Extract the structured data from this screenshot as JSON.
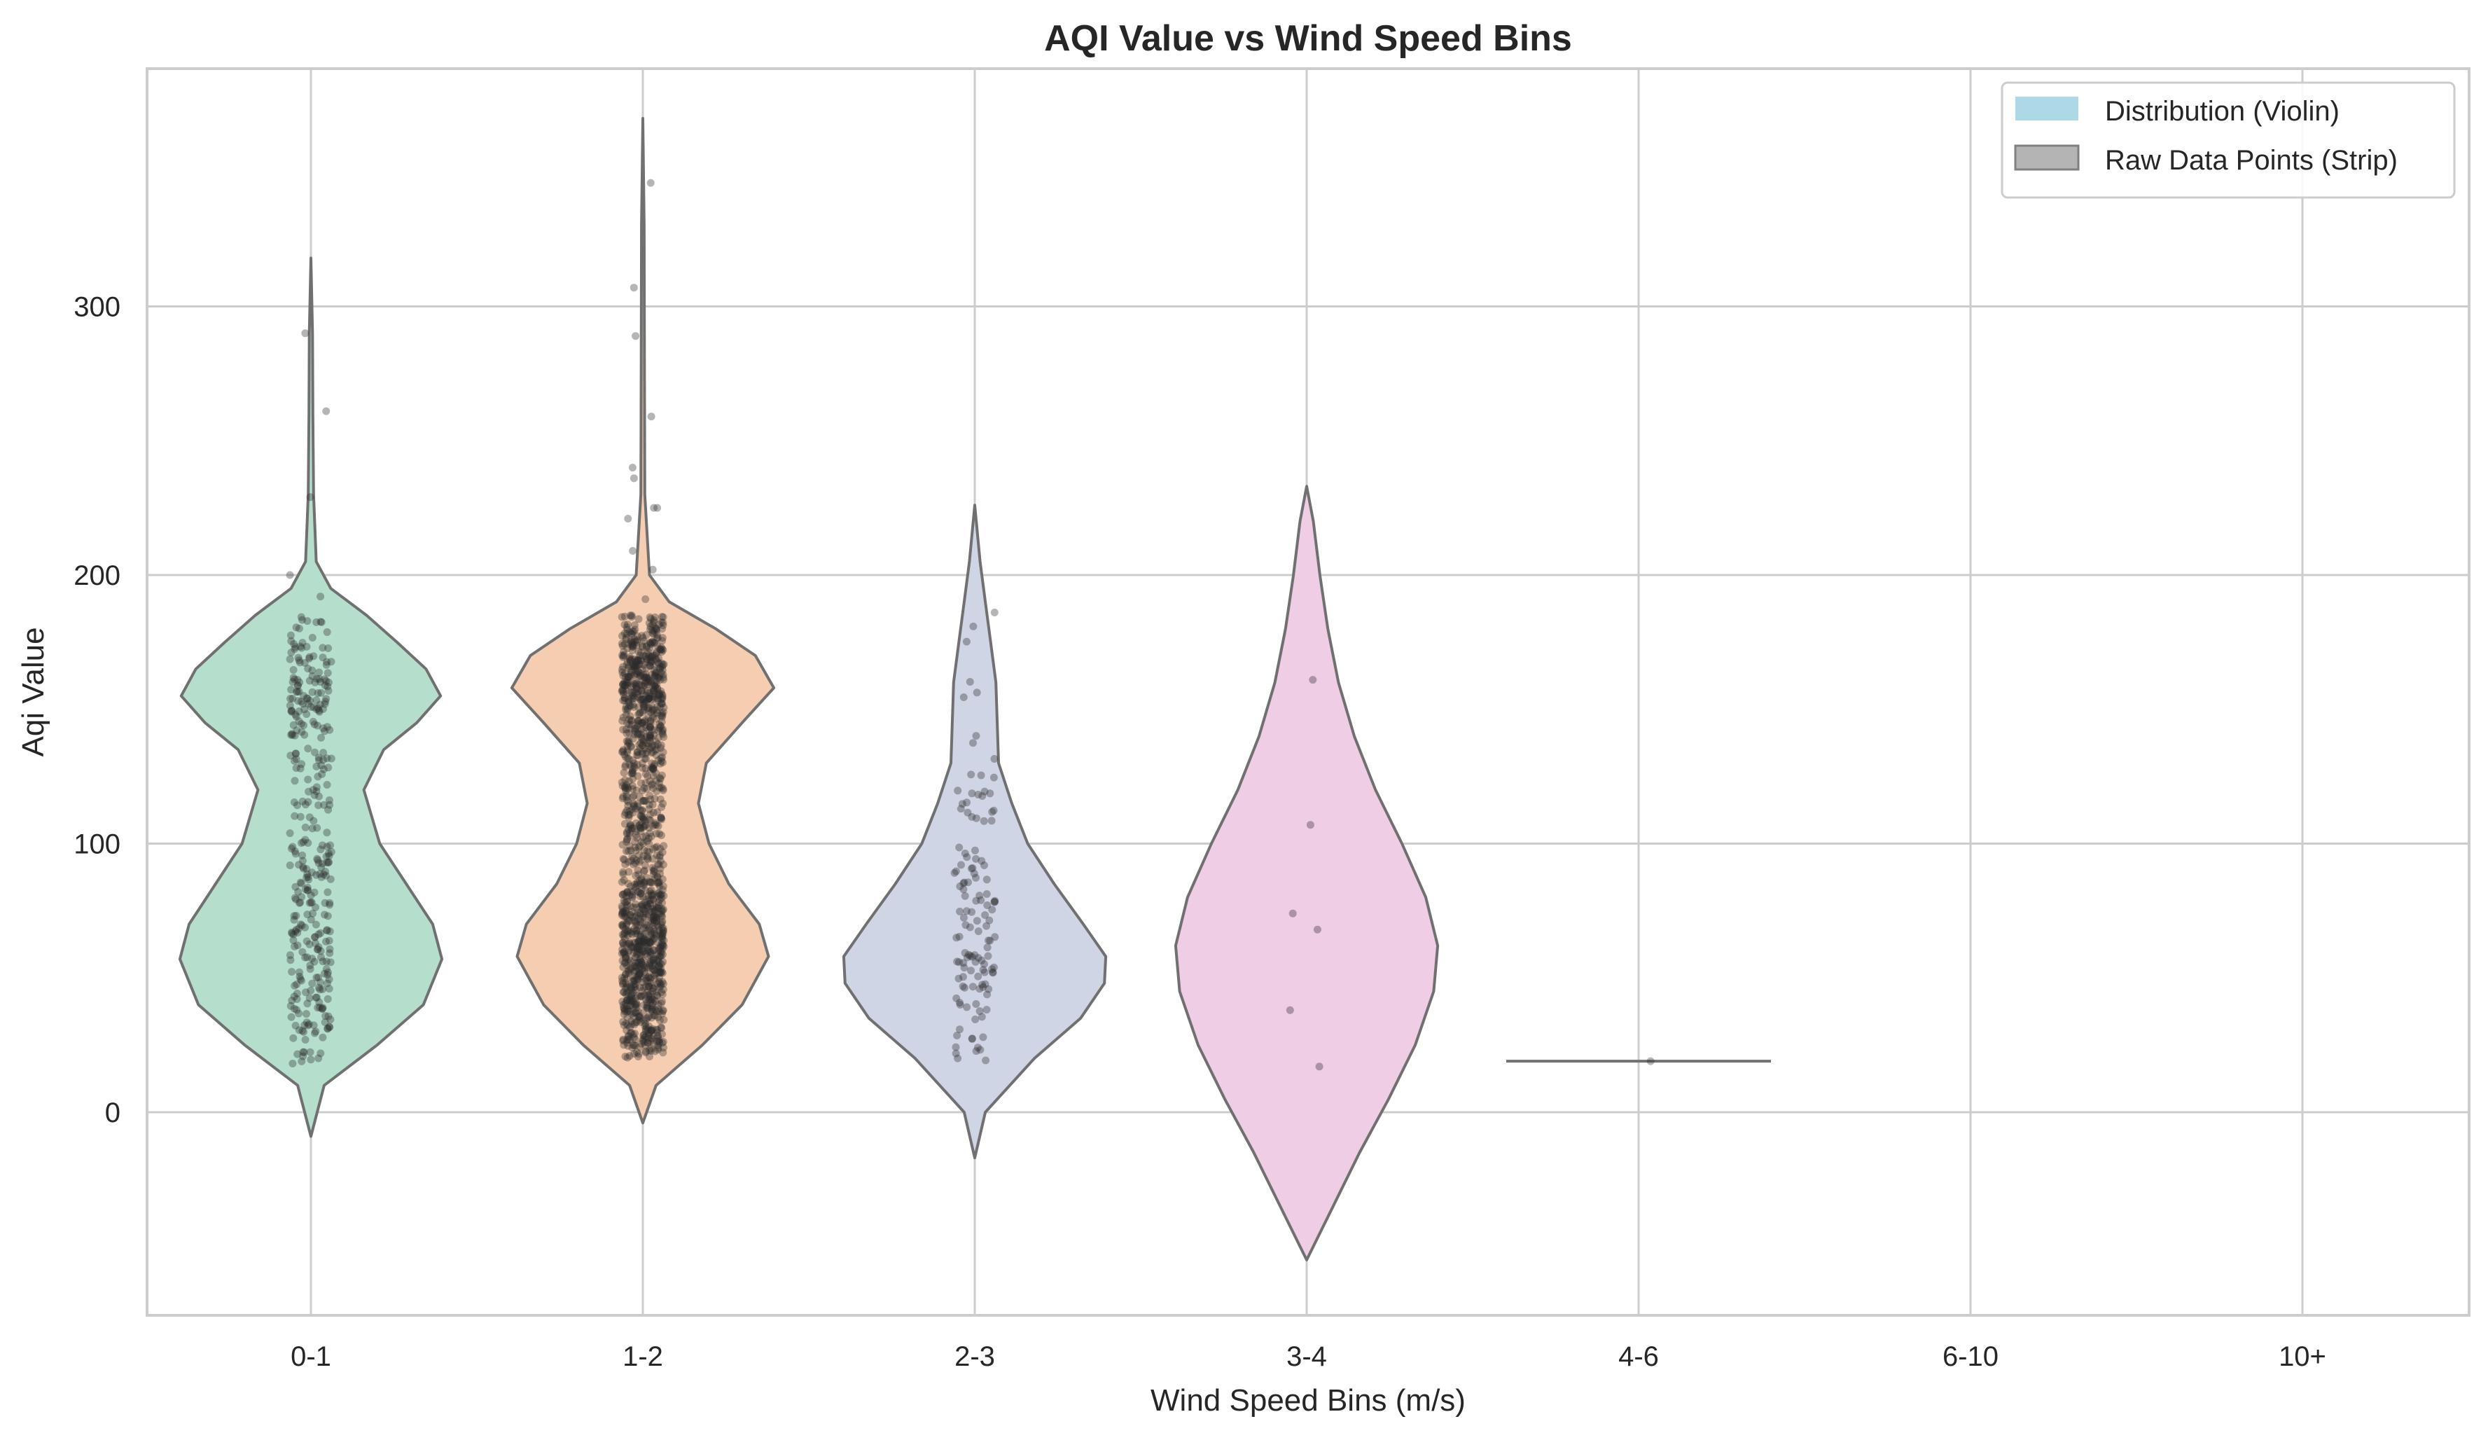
{
  "chart_data": {
    "type": "violin",
    "title": "AQI Value vs Wind Speed Bins",
    "xlabel": "Wind Speed Bins (m/s)",
    "ylabel": "Aqi Value",
    "categories": [
      "0-1",
      "1-2",
      "2-3",
      "3-4",
      "4-6",
      "6-10",
      "10+"
    ],
    "yticks": [
      0,
      100,
      200,
      300
    ],
    "ylim": [
      -76,
      390
    ],
    "grid": true,
    "legend": {
      "placement": "top-right",
      "entries": [
        {
          "label": "Distribution (Violin)",
          "color": "#add8e6"
        },
        {
          "label": "Raw Data Points (Strip)",
          "color": "#b4b4b4"
        }
      ]
    },
    "violins": [
      {
        "category": "0-1",
        "color": "#b5dfcc",
        "min": -9,
        "max": 318,
        "profile": [
          [
            -9,
            0.0
          ],
          [
            10,
            0.1
          ],
          [
            25,
            0.5
          ],
          [
            40,
            0.85
          ],
          [
            57,
            0.99
          ],
          [
            70,
            0.92
          ],
          [
            85,
            0.72
          ],
          [
            100,
            0.52
          ],
          [
            120,
            0.4
          ],
          [
            135,
            0.55
          ],
          [
            145,
            0.8
          ],
          [
            155,
            0.98
          ],
          [
            165,
            0.87
          ],
          [
            175,
            0.65
          ],
          [
            185,
            0.42
          ],
          [
            195,
            0.15
          ],
          [
            205,
            0.04
          ],
          [
            230,
            0.02
          ],
          [
            260,
            0.015
          ],
          [
            290,
            0.012
          ],
          [
            318,
            0.0
          ]
        ]
      },
      {
        "category": "1-2",
        "color": "#f5cdb0",
        "min": -4,
        "max": 370,
        "profile": [
          [
            -4,
            0.0
          ],
          [
            10,
            0.1
          ],
          [
            25,
            0.45
          ],
          [
            40,
            0.75
          ],
          [
            58,
            0.95
          ],
          [
            70,
            0.88
          ],
          [
            85,
            0.65
          ],
          [
            100,
            0.5
          ],
          [
            115,
            0.42
          ],
          [
            130,
            0.48
          ],
          [
            145,
            0.75
          ],
          [
            158,
            0.99
          ],
          [
            170,
            0.85
          ],
          [
            180,
            0.55
          ],
          [
            190,
            0.2
          ],
          [
            200,
            0.05
          ],
          [
            230,
            0.015
          ],
          [
            280,
            0.012
          ],
          [
            330,
            0.01
          ],
          [
            370,
            0.0
          ]
        ]
      },
      {
        "category": "2-3",
        "color": "#cfd5e4",
        "min": -17,
        "max": 226,
        "profile": [
          [
            -17,
            0.0
          ],
          [
            0,
            0.08
          ],
          [
            20,
            0.45
          ],
          [
            35,
            0.8
          ],
          [
            48,
            0.98
          ],
          [
            58,
            0.99
          ],
          [
            70,
            0.82
          ],
          [
            85,
            0.6
          ],
          [
            100,
            0.4
          ],
          [
            115,
            0.28
          ],
          [
            130,
            0.18
          ],
          [
            145,
            0.17
          ],
          [
            160,
            0.16
          ],
          [
            175,
            0.12
          ],
          [
            190,
            0.08
          ],
          [
            205,
            0.04
          ],
          [
            226,
            0.0
          ]
        ]
      },
      {
        "category": "3-4",
        "color": "#efcde4",
        "min": -55,
        "max": 233,
        "profile": [
          [
            -55,
            0.0
          ],
          [
            -35,
            0.2
          ],
          [
            -15,
            0.4
          ],
          [
            5,
            0.62
          ],
          [
            25,
            0.82
          ],
          [
            45,
            0.96
          ],
          [
            62,
            0.99
          ],
          [
            80,
            0.9
          ],
          [
            100,
            0.72
          ],
          [
            120,
            0.52
          ],
          [
            140,
            0.36
          ],
          [
            160,
            0.24
          ],
          [
            180,
            0.16
          ],
          [
            200,
            0.1
          ],
          [
            220,
            0.05
          ],
          [
            233,
            0.0
          ]
        ]
      },
      {
        "category": "4-6",
        "color": "#cccccc",
        "min": 19,
        "max": 19,
        "profile": []
      }
    ],
    "strip_points": [
      {
        "category": "0-1",
        "n": 360,
        "min": 18,
        "max": 187,
        "outliers": [
          261,
          290,
          229,
          200,
          192
        ]
      },
      {
        "category": "1-2",
        "n": 1400,
        "min": 20,
        "max": 185,
        "outliers": [
          346,
          307,
          289,
          259,
          240,
          236,
          225,
          225,
          221,
          209,
          202,
          191
        ]
      },
      {
        "category": "2-3",
        "n": 130,
        "min": 17,
        "max": 192,
        "outliers": []
      },
      {
        "category": "3-4",
        "n": 6,
        "values": [
          161,
          107,
          74,
          68,
          38,
          17
        ]
      },
      {
        "category": "4-6",
        "n": 1,
        "values": [
          19
        ]
      }
    ]
  }
}
